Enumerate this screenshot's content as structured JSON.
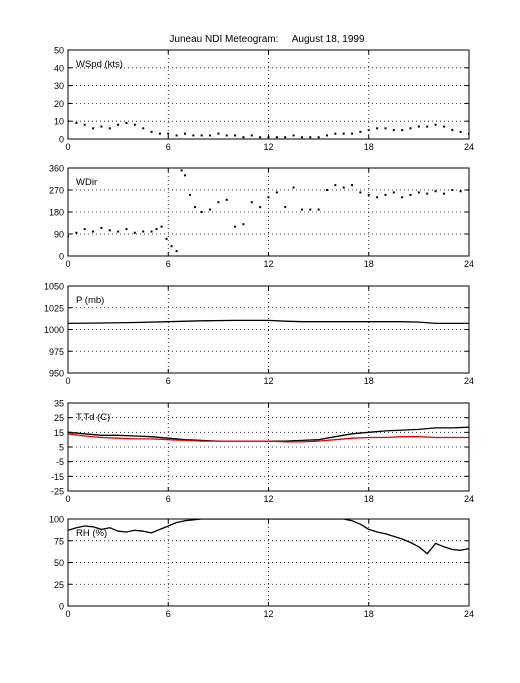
{
  "page_title": {
    "station": "Juneau NDI Meteogram:",
    "date": "August 18, 1999"
  },
  "chart_data": [
    {
      "id": "wspd",
      "type": "scatter",
      "label": "WSpd (kts)",
      "xlim": [
        0,
        24
      ],
      "xticks": [
        "0",
        "6",
        "12",
        "18",
        "24"
      ],
      "ylim": [
        0,
        50
      ],
      "yticks": [
        "0",
        "10",
        "20",
        "30",
        "40",
        "50"
      ],
      "grid": true,
      "series": [
        {
          "color": "#000000",
          "x": [
            0,
            0.5,
            1,
            1.5,
            2,
            2.5,
            3,
            3.5,
            4,
            4.5,
            5,
            5.5,
            6,
            6.5,
            7,
            7.5,
            8,
            8.5,
            9,
            9.5,
            10,
            10.5,
            11,
            11.5,
            12,
            12.5,
            13,
            13.5,
            14,
            14.5,
            15,
            15.5,
            16,
            16.5,
            17,
            17.5,
            18,
            18.5,
            19,
            19.5,
            20,
            20.5,
            21,
            21.5,
            22,
            22.5,
            23,
            23.5,
            24
          ],
          "y": [
            10,
            9,
            8,
            6,
            7,
            6,
            8,
            9,
            8,
            6,
            4,
            3,
            3,
            2,
            3,
            2,
            2,
            2,
            3,
            2,
            2,
            1,
            2,
            1,
            1,
            1,
            1,
            2,
            1,
            1,
            1,
            2,
            3,
            3,
            3,
            4,
            5,
            6,
            6,
            5,
            5,
            6,
            7,
            7,
            8,
            7,
            5,
            4,
            3
          ]
        }
      ]
    },
    {
      "id": "wdir",
      "type": "scatter",
      "label": "WDir",
      "xlim": [
        0,
        24
      ],
      "xticks": [
        "0",
        "6",
        "12",
        "18",
        "24"
      ],
      "ylim": [
        0,
        360
      ],
      "yticks": [
        "0",
        "90",
        "180",
        "270",
        "360"
      ],
      "grid": true,
      "series": [
        {
          "color": "#000000",
          "x": [
            0,
            0.5,
            1,
            1.5,
            2,
            2.5,
            3,
            3.5,
            4,
            4.5,
            5,
            5.3,
            5.6,
            5.9,
            6.2,
            6.5,
            6.8,
            7,
            7.3,
            7.6,
            8,
            8.5,
            9,
            9.5,
            10,
            10.5,
            11,
            11.5,
            12,
            12.5,
            13,
            13.5,
            14,
            14.5,
            15,
            15.5,
            16,
            16.5,
            17,
            17.5,
            18,
            18.5,
            19,
            19.5,
            20,
            20.5,
            21,
            21.5,
            22,
            22.5,
            23,
            23.5,
            24
          ],
          "y": [
            80,
            95,
            110,
            100,
            115,
            105,
            100,
            110,
            95,
            100,
            100,
            110,
            120,
            70,
            40,
            20,
            350,
            330,
            250,
            200,
            180,
            190,
            220,
            230,
            120,
            130,
            220,
            200,
            240,
            260,
            200,
            280,
            190,
            190,
            190,
            270,
            290,
            280,
            290,
            260,
            250,
            240,
            250,
            260,
            240,
            250,
            260,
            255,
            265,
            255,
            270,
            265,
            270
          ]
        }
      ]
    },
    {
      "id": "pres",
      "type": "line",
      "label": "P (mb)",
      "xlim": [
        0,
        24
      ],
      "xticks": [
        "0",
        "6",
        "12",
        "18",
        "24"
      ],
      "ylim": [
        950,
        1050
      ],
      "yticks": [
        "950",
        "975",
        "1000",
        "1025",
        "1050"
      ],
      "grid": true,
      "series": [
        {
          "color": "#000000",
          "x": [
            0,
            2,
            4,
            6,
            8,
            10,
            12,
            13,
            14,
            16,
            18,
            20,
            21,
            22,
            24
          ],
          "y": [
            1007,
            1007.5,
            1008,
            1009,
            1010,
            1010.5,
            1010.5,
            1009.5,
            1009,
            1009,
            1009,
            1009,
            1008.5,
            1007,
            1007
          ]
        }
      ]
    },
    {
      "id": "temp",
      "type": "line",
      "label": "T,Td (C)",
      "xlim": [
        0,
        24
      ],
      "xticks": [
        "0",
        "6",
        "12",
        "18",
        "24"
      ],
      "ylim": [
        -25,
        35
      ],
      "yticks": [
        "-25",
        "-15",
        "-5",
        "5",
        "15",
        "25",
        "35"
      ],
      "grid": true,
      "series": [
        {
          "color": "#000000",
          "x": [
            0,
            1,
            2,
            3,
            4,
            5,
            6,
            7,
            8,
            9,
            10,
            11,
            12,
            13,
            14,
            15,
            16,
            17,
            18,
            19,
            20,
            21,
            22,
            23,
            24
          ],
          "y": [
            15,
            14,
            13,
            13,
            12.5,
            12,
            11,
            10,
            9.5,
            9,
            9,
            9,
            9,
            9,
            9.5,
            10,
            12,
            14,
            15,
            16,
            16.5,
            17,
            18,
            18,
            18.5
          ]
        },
        {
          "color": "#e00000",
          "x": [
            0,
            1,
            2,
            3,
            4,
            5,
            6,
            7,
            8,
            9,
            10,
            11,
            12,
            13,
            14,
            15,
            16,
            17,
            18,
            19,
            20,
            21,
            22,
            23,
            24
          ],
          "y": [
            14,
            12.5,
            11.5,
            11,
            10.5,
            10.5,
            10,
            9.5,
            9,
            9,
            9,
            9,
            9,
            8.5,
            8.5,
            9,
            10,
            11,
            11.5,
            11.5,
            12,
            12,
            11.5,
            11.5,
            11.5
          ]
        }
      ]
    },
    {
      "id": "rh",
      "type": "line",
      "label": "RH (%)",
      "xlim": [
        0,
        24
      ],
      "xticks": [
        "0",
        "6",
        "12",
        "18",
        "24"
      ],
      "ylim": [
        0,
        100
      ],
      "yticks": [
        "0",
        "25",
        "50",
        "75",
        "100"
      ],
      "grid": true,
      "series": [
        {
          "color": "#000000",
          "x": [
            0,
            0.5,
            1,
            1.5,
            2,
            2.5,
            3,
            3.5,
            4,
            4.5,
            5,
            5.5,
            6,
            6.5,
            7,
            7.5,
            8,
            16.5,
            17,
            17.5,
            18,
            18.5,
            19,
            19.5,
            20,
            20.5,
            21,
            21.5,
            22,
            22.5,
            23,
            23.5,
            24
          ],
          "y": [
            87,
            90,
            92,
            91,
            88,
            90,
            86,
            85,
            87,
            86,
            84,
            88,
            92,
            96,
            98,
            99,
            100,
            100,
            98,
            94,
            88,
            85,
            83,
            80,
            77,
            73,
            68,
            60,
            72,
            68,
            65,
            64,
            66
          ]
        }
      ]
    }
  ]
}
